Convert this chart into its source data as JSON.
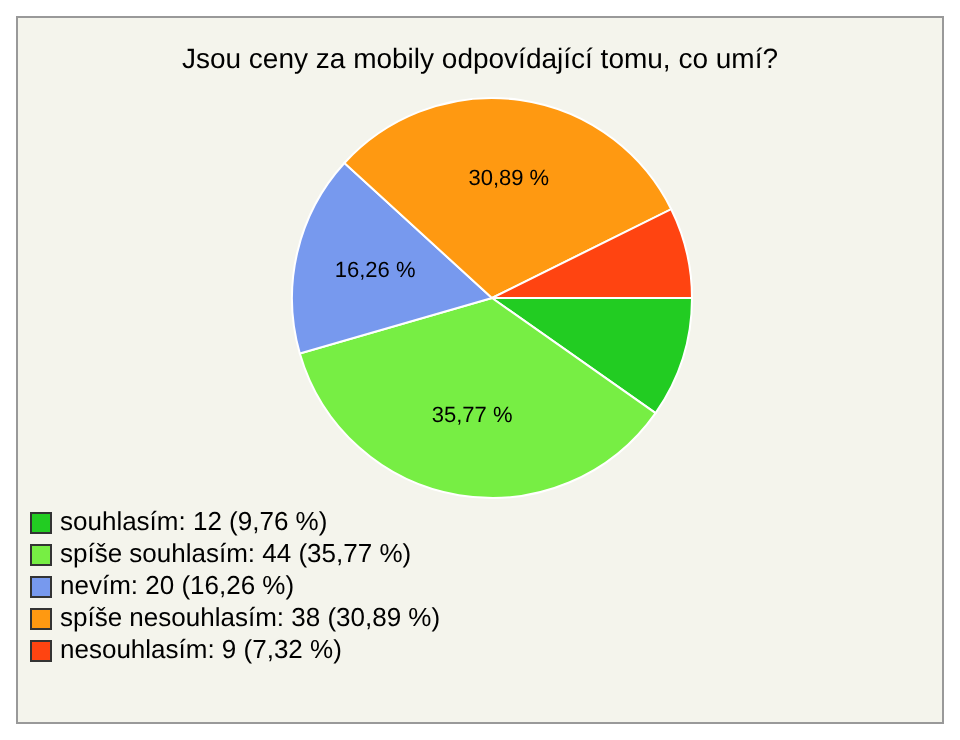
{
  "chart_data": {
    "type": "pie",
    "title": "Jsou ceny za mobily odpovídající tomu, co umí?",
    "categories": [
      "souhlasím: 12 (9,76 %)",
      "spíše souhlasím: 44 (35,77 %)",
      "nevím: 20 (16,26 %)",
      "spíše nesouhlasím: 38 (30,89 %)",
      "nesouhlasím: 9 (7,32 %)"
    ],
    "values": [
      9.76,
      35.77,
      16.26,
      30.89,
      7.32
    ],
    "colors": [
      "#22cc22",
      "#77ee44",
      "#7799ee",
      "#ff9911",
      "#ff4411"
    ],
    "value_labels": [
      null,
      "35,77 %",
      "16,26 %",
      "30,89 %",
      null
    ],
    "legend": "bottom left"
  }
}
